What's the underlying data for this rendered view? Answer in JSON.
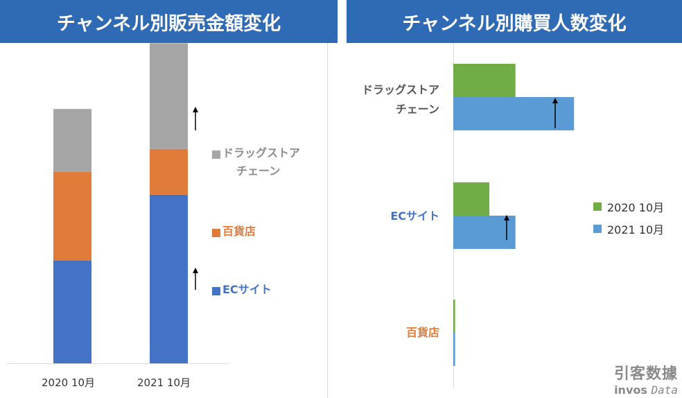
{
  "chart_data": [
    {
      "type": "bar",
      "stacked": true,
      "title": "チャンネル別販売金額変化",
      "categories": [
        "2020 10月",
        "2021 10月"
      ],
      "series": [
        {
          "name": "ECサイト",
          "color": "#4472c4",
          "values": [
            36,
            59
          ]
        },
        {
          "name": "百貨店",
          "color": "#e07b39",
          "values": [
            31,
            16
          ]
        },
        {
          "name": "ドラッグストアチェーン",
          "color": "#a5a5a5",
          "values": [
            22,
            37
          ]
        }
      ],
      "legend_labels": [
        {
          "lines": [
            "ドラッグストア",
            "チェーン"
          ],
          "color": "#a5a5a5"
        },
        {
          "lines": [
            "百貨店"
          ],
          "color": "#e07b39"
        },
        {
          "lines": [
            "ECサイト"
          ],
          "color": "#4472c4"
        }
      ],
      "annotations": [
        "↑",
        "↑"
      ],
      "ylim": [
        0,
        115
      ],
      "grid": false,
      "legend_position": "right"
    },
    {
      "type": "bar",
      "orientation": "horizontal",
      "title": "チャンネル別購買人数変化",
      "categories": [
        {
          "lines": [
            "ドラッグストア",
            "チェーン"
          ],
          "color": "#555555"
        },
        {
          "lines": [
            "ECサイト"
          ],
          "color": "#4472c4"
        },
        {
          "lines": [
            "百貨店"
          ],
          "color": "#e07b39"
        }
      ],
      "series": [
        {
          "name": "2020 10月",
          "color": "#70ad47",
          "values": [
            69,
            40,
            2
          ]
        },
        {
          "name": "2021 10月",
          "color": "#5b9bd5",
          "values": [
            134,
            69,
            2
          ]
        }
      ],
      "annotations": [
        "↑",
        "↑"
      ],
      "xlim": [
        0,
        200
      ],
      "grid": false,
      "legend_position": "right"
    }
  ],
  "watermark": {
    "main": "引客数據",
    "brand": "invos",
    "suffix": "Data"
  }
}
